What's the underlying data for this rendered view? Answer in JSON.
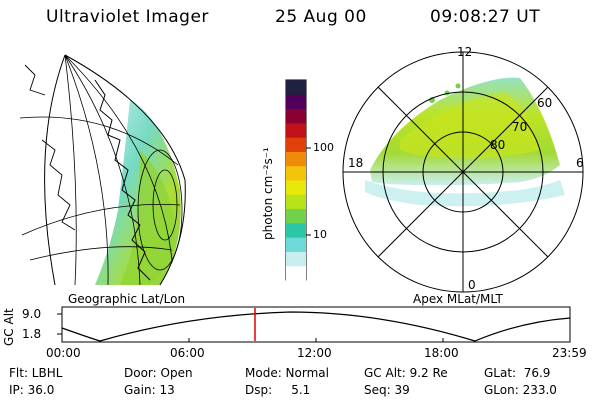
{
  "header": {
    "instrument": "Ultraviolet Imager",
    "date": "25 Aug 00",
    "time": "09:08:27 UT"
  },
  "panels": {
    "geo_label": "Geographic Lat/Lon",
    "apex_label": "Apex MLat/MLT"
  },
  "colorbar": {
    "unit_label": "photon cm⁻²s⁻¹",
    "ticks": [
      "100",
      "10"
    ],
    "colors": [
      "#ffffff",
      "#c8eef0",
      "#6fd8d8",
      "#2bc6a6",
      "#6fd24a",
      "#b8e21a",
      "#e8e80a",
      "#f4c40a",
      "#f08a0a",
      "#e0400a",
      "#c0101a",
      "#8a0030",
      "#50005a",
      "#202040"
    ]
  },
  "polar_plot": {
    "mlt_labels": {
      "top": "12",
      "right": "6",
      "bottom": "0",
      "left": "18"
    },
    "lat_labels": [
      "60",
      "70",
      "80"
    ]
  },
  "altitude_plot": {
    "ylabel": "GC Alt",
    "yticks": [
      "9.0",
      "1.8"
    ],
    "xticks": [
      "00:00",
      "06:00",
      "12:00",
      "18:00",
      "23:59"
    ],
    "marker_color": "#e00000"
  },
  "info": {
    "row1": {
      "filter": "Flt: LBHL",
      "door": "Door: Open",
      "mode": "Mode: Normal",
      "gc_alt": "GC Alt: 9.2 Re",
      "glat": "GLat:  76.9"
    },
    "row2": {
      "ip": "IP: 36.0",
      "gain": "Gain: 13",
      "dsp": "Dsp:     5.1",
      "seq": "Seq: 39",
      "glon": "GLon: 233.0"
    }
  }
}
